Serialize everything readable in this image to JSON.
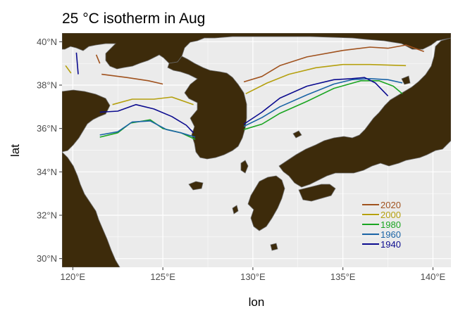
{
  "chart_data": {
    "type": "line",
    "title": "25 °C isotherm in Aug",
    "xlabel": "lon",
    "ylabel": "lat",
    "xlim": [
      119.4,
      141.0
    ],
    "ylim": [
      29.6,
      40.4
    ],
    "x_ticks": [
      {
        "value": 120,
        "label": "120°E"
      },
      {
        "value": 125,
        "label": "125°E"
      },
      {
        "value": 130,
        "label": "130°E"
      },
      {
        "value": 135,
        "label": "135°E"
      },
      {
        "value": 140,
        "label": "140°E"
      }
    ],
    "y_ticks": [
      {
        "value": 30,
        "label": "30°N"
      },
      {
        "value": 32,
        "label": "32°N"
      },
      {
        "value": 34,
        "label": "34°N"
      },
      {
        "value": 36,
        "label": "36°N"
      },
      {
        "value": 38,
        "label": "38°N"
      },
      {
        "value": 40,
        "label": "40°N"
      }
    ],
    "grid": true,
    "legend_position": "bottom-right (inside)",
    "panel_background": "#ebebeb",
    "land_color": "#3d2b0b",
    "series": [
      {
        "name": "2020",
        "color": "#a0521e",
        "segments": [
          [
            [
              121.3,
              39.4
            ],
            [
              121.5,
              39.0
            ]
          ],
          [
            [
              121.6,
              38.5
            ],
            [
              123.0,
              38.35
            ],
            [
              124.2,
              38.2
            ],
            [
              125.0,
              38.05
            ]
          ],
          [
            [
              129.5,
              38.15
            ],
            [
              130.5,
              38.4
            ],
            [
              131.5,
              38.9
            ],
            [
              133.0,
              39.3
            ],
            [
              135.0,
              39.6
            ],
            [
              136.5,
              39.75
            ],
            [
              137.5,
              39.7
            ],
            [
              138.5,
              39.85
            ],
            [
              139.5,
              39.55
            ]
          ]
        ]
      },
      {
        "name": "2000",
        "color": "#b5a00e",
        "segments": [
          [
            [
              119.6,
              38.9
            ],
            [
              119.9,
              38.55
            ]
          ],
          [
            [
              122.2,
              37.1
            ],
            [
              123.3,
              37.35
            ],
            [
              124.5,
              37.35
            ],
            [
              125.5,
              37.45
            ],
            [
              126.7,
              37.1
            ]
          ],
          [
            [
              129.6,
              37.6
            ],
            [
              130.8,
              38.1
            ],
            [
              132.0,
              38.5
            ],
            [
              133.5,
              38.8
            ],
            [
              135.0,
              38.95
            ],
            [
              136.5,
              38.95
            ],
            [
              138.5,
              38.9
            ]
          ]
        ]
      },
      {
        "name": "1980",
        "color": "#1aa521",
        "segments": [
          [
            [
              121.5,
              35.6
            ],
            [
              122.5,
              35.8
            ],
            [
              123.2,
              36.25
            ],
            [
              124.3,
              36.4
            ],
            [
              125.0,
              36.0
            ],
            [
              126.0,
              35.8
            ],
            [
              126.8,
              35.5
            ]
          ],
          [
            [
              129.5,
              35.95
            ],
            [
              130.5,
              36.2
            ],
            [
              131.5,
              36.7
            ],
            [
              133.0,
              37.25
            ],
            [
              134.5,
              37.85
            ],
            [
              136.0,
              38.2
            ],
            [
              137.0,
              38.2
            ],
            [
              137.8,
              37.95
            ],
            [
              138.3,
              37.6
            ]
          ]
        ]
      },
      {
        "name": "1960",
        "color": "#1a64a6",
        "segments": [
          [
            [
              121.5,
              35.7
            ],
            [
              122.5,
              35.85
            ],
            [
              123.3,
              36.3
            ],
            [
              124.3,
              36.35
            ],
            [
              125.2,
              35.95
            ],
            [
              126.0,
              35.8
            ],
            [
              126.8,
              35.6
            ]
          ],
          [
            [
              129.5,
              36.1
            ],
            [
              130.5,
              36.5
            ],
            [
              131.5,
              37.0
            ],
            [
              133.0,
              37.55
            ],
            [
              134.5,
              38.05
            ],
            [
              135.5,
              38.25
            ],
            [
              136.5,
              38.3
            ],
            [
              137.5,
              38.25
            ],
            [
              138.3,
              38.1
            ]
          ]
        ]
      },
      {
        "name": "1940",
        "color": "#0b0b8f",
        "segments": [
          [
            [
              120.2,
              39.5
            ],
            [
              120.3,
              38.5
            ]
          ],
          [
            [
              121.5,
              36.75
            ],
            [
              122.5,
              36.8
            ],
            [
              123.5,
              37.1
            ],
            [
              124.5,
              36.9
            ],
            [
              125.5,
              36.55
            ],
            [
              126.3,
              36.15
            ],
            [
              126.7,
              35.8
            ]
          ],
          [
            [
              129.5,
              36.2
            ],
            [
              130.5,
              36.75
            ],
            [
              131.5,
              37.4
            ],
            [
              133.0,
              37.95
            ],
            [
              134.5,
              38.25
            ],
            [
              135.5,
              38.3
            ],
            [
              136.2,
              38.35
            ],
            [
              136.8,
              38.1
            ],
            [
              137.5,
              37.5
            ]
          ]
        ]
      }
    ]
  }
}
